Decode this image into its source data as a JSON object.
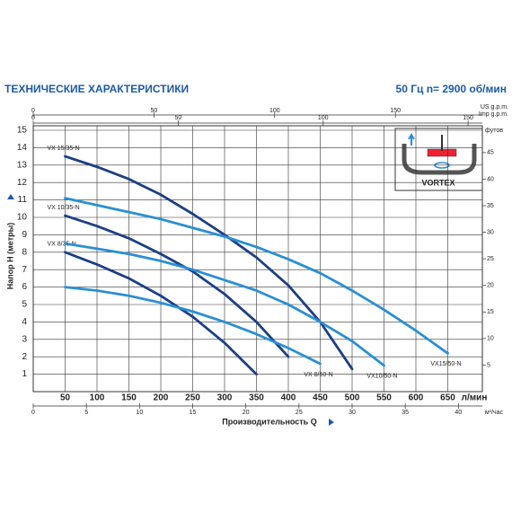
{
  "chart_data": {
    "type": "line",
    "title": "ТЕХНИЧЕСКИЕ ХАРАКТЕРИСТИКИ",
    "subtitle": "50 Гц  n= 2900 об/мин",
    "x_label": "Производительность  Q",
    "x_unit": "л/мин",
    "y_label": "Напор  H (метры)",
    "xlim": [
      0,
      700
    ],
    "xticks": [
      50,
      100,
      150,
      200,
      250,
      300,
      350,
      400,
      450,
      500,
      550,
      600,
      650
    ],
    "ylim": [
      0,
      15
    ],
    "yticks": [
      1,
      2,
      3,
      4,
      5,
      6,
      7,
      8,
      9,
      10,
      11,
      12,
      13,
      14,
      15
    ],
    "grid": true,
    "top_axes": [
      {
        "label": "US g.p.m.",
        "lim": [
          0,
          184.9
        ],
        "ticks": [
          0,
          50,
          100,
          150
        ]
      },
      {
        "label": "Imp g.p.m.",
        "lim": [
          0,
          154
        ],
        "ticks": [
          0,
          50,
          100,
          150
        ]
      }
    ],
    "x2": {
      "label": "м³/час",
      "lim": [
        0,
        42
      ],
      "ticks": [
        0,
        5,
        10,
        15,
        20,
        25,
        30,
        35,
        40
      ]
    },
    "y2": {
      "label": "футов",
      "lim": [
        0,
        49.21
      ],
      "ticks": [
        5,
        10,
        15,
        20,
        25,
        30,
        35,
        40,
        45
      ]
    },
    "inset_label": "VORTEX",
    "series": [
      {
        "name": "VX 15/35-N",
        "color": "#1b3f86",
        "x": [
          50,
          100,
          150,
          200,
          250,
          300,
          350,
          400,
          450,
          500
        ],
        "values": [
          13.5,
          12.9,
          12.2,
          11.3,
          10.2,
          9.0,
          7.7,
          6.1,
          4.0,
          1.3
        ]
      },
      {
        "name": "VX 10/35-N",
        "color": "#1b3f86",
        "x": [
          50,
          100,
          150,
          200,
          250,
          300,
          350,
          400
        ],
        "values": [
          10.1,
          9.5,
          8.8,
          7.9,
          6.9,
          5.6,
          4.0,
          2.0
        ]
      },
      {
        "name": "VX 8/35-N",
        "color": "#1b3f86",
        "x": [
          50,
          100,
          150,
          200,
          250,
          300,
          350
        ],
        "values": [
          8.0,
          7.3,
          6.5,
          5.5,
          4.3,
          2.8,
          1.0
        ]
      },
      {
        "name": "VX15/50-N",
        "color": "#2a8fd4",
        "x": [
          50,
          100,
          150,
          200,
          250,
          300,
          350,
          400,
          450,
          500,
          550,
          600,
          650
        ],
        "values": [
          11.1,
          10.7,
          10.3,
          9.9,
          9.4,
          8.9,
          8.3,
          7.6,
          6.8,
          5.8,
          4.7,
          3.5,
          2.2
        ]
      },
      {
        "name": "VX10/50-N",
        "color": "#2a8fd4",
        "x": [
          50,
          100,
          150,
          200,
          250,
          300,
          350,
          400,
          450,
          500,
          550
        ],
        "values": [
          8.5,
          8.2,
          7.9,
          7.5,
          7.0,
          6.4,
          5.8,
          5.0,
          4.0,
          2.9,
          1.5
        ]
      },
      {
        "name": "VX 8/50-N",
        "color": "#2a8fd4",
        "x": [
          50,
          100,
          150,
          200,
          250,
          300,
          350,
          400,
          450
        ],
        "values": [
          6.0,
          5.8,
          5.5,
          5.1,
          4.6,
          4.0,
          3.3,
          2.5,
          1.6
        ]
      }
    ]
  }
}
